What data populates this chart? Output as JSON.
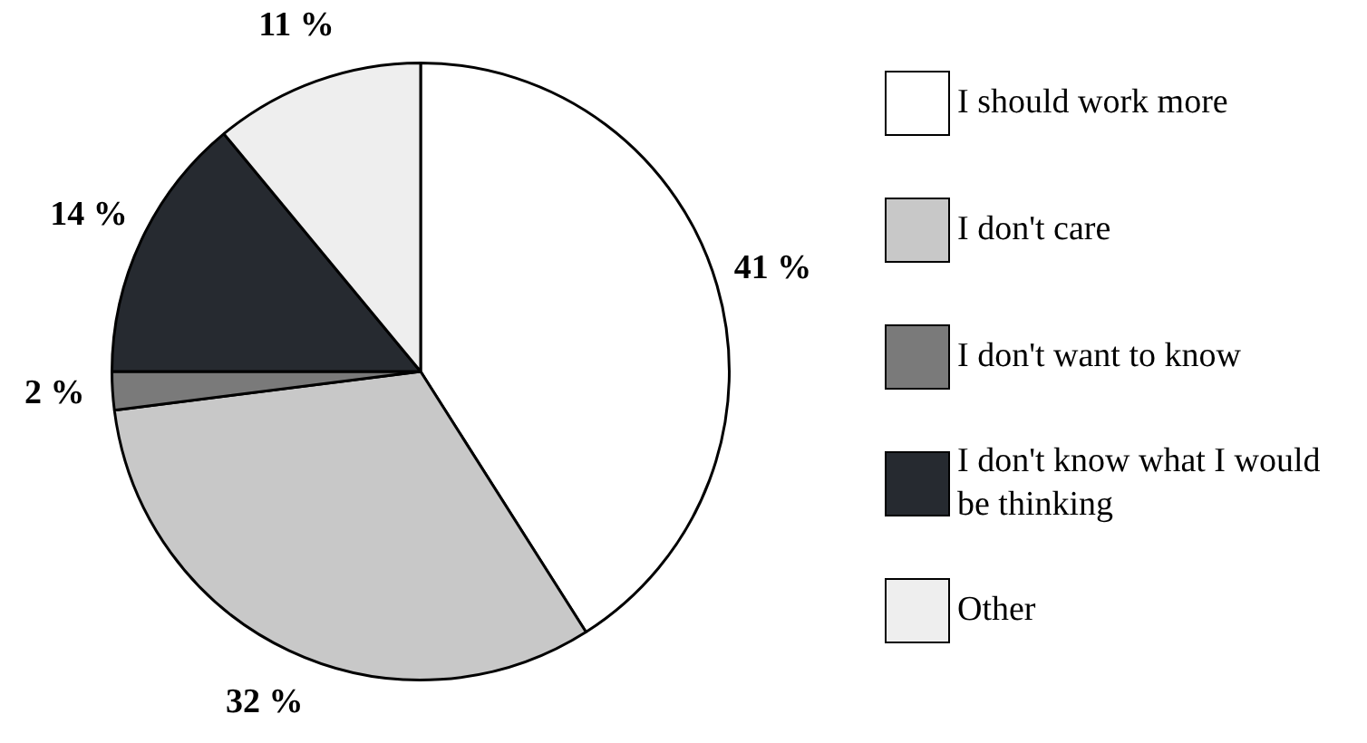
{
  "chart_data": {
    "type": "pie",
    "categories": [
      "I should work more",
      "I don't care",
      "I don't want to know",
      "I don't know what I would be thinking",
      "Other"
    ],
    "values": [
      41,
      32,
      2,
      14,
      11
    ],
    "colors": [
      "#ffffff",
      "#c8c8c8",
      "#7a7a7a",
      "#262a30",
      "#eeeeee"
    ],
    "value_labels": [
      "41 %",
      "32 %",
      "2 %",
      "14 %",
      "11 %"
    ],
    "legend": "right"
  }
}
